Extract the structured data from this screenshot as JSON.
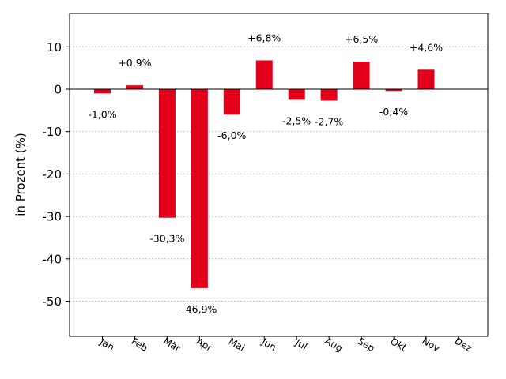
{
  "chart_data": {
    "type": "bar",
    "title": "",
    "xlabel": "",
    "ylabel": "in Prozent (%)",
    "categories": [
      "Jan",
      "Feb",
      "Mär",
      "Apr",
      "Mai",
      "Jun",
      "Jul",
      "Aug",
      "Sep",
      "Okt",
      "Nov",
      "Dez"
    ],
    "values": [
      -1.0,
      0.9,
      -30.3,
      -46.9,
      -6.0,
      6.8,
      -2.5,
      -2.7,
      6.5,
      -0.4,
      4.6,
      0.0
    ],
    "data_labels": [
      "-1,0%",
      "+0,9%",
      "-30,3%",
      "-46,9%",
      "-6,0%",
      "+6,8%",
      "-2,5%",
      "-2,7%",
      "+6,5%",
      "-0,4%",
      "+4,6%",
      ""
    ],
    "yticks": [
      10,
      0,
      -10,
      -20,
      -30,
      -40,
      -50
    ],
    "ylim": [
      -58,
      18
    ],
    "grid": true,
    "bar_color": "#e2001a",
    "grid_color": "#b0b0b0",
    "zero_line_color": "#000000"
  }
}
